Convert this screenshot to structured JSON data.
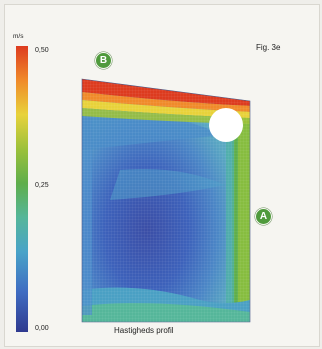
{
  "figure": {
    "label": "Fig. 3e",
    "caption": "Hastigheds profil",
    "markers": [
      "B",
      "A"
    ]
  },
  "chart_data": {
    "type": "heatmap",
    "title": "",
    "xlabel": "Hastigheds profil",
    "ylabel": "",
    "colorbar": {
      "unit": "m/s",
      "ticks": [
        "0,50",
        "0,25",
        "0,00"
      ],
      "range": [
        0.0,
        0.5
      ],
      "colors": [
        "#2f3a8f",
        "#3f6cc2",
        "#49a3c8",
        "#55b69a",
        "#5fae4b",
        "#9cc13a",
        "#e8d23a",
        "#f08a2a",
        "#dd3b1f"
      ]
    }
  },
  "colors": {
    "badge": "#4f9a3c",
    "background": "#f6f5f1"
  }
}
